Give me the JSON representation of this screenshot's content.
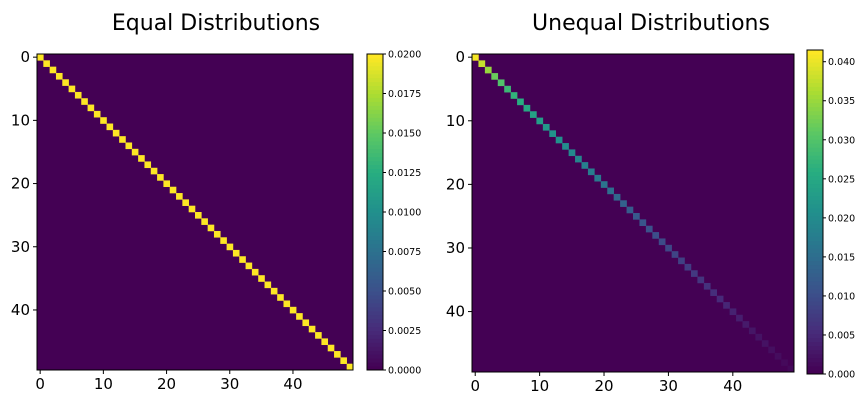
{
  "chart_data": [
    {
      "type": "heatmap",
      "title": "Equal Distributions",
      "xlabel": "",
      "ylabel": "",
      "size": 50,
      "x_ticks": [
        0,
        10,
        20,
        30,
        40
      ],
      "y_ticks": [
        0,
        10,
        20,
        30,
        40
      ],
      "diagonal_values": [
        0.02,
        0.02,
        0.02,
        0.02,
        0.02,
        0.02,
        0.02,
        0.02,
        0.02,
        0.02,
        0.02,
        0.02,
        0.02,
        0.02,
        0.02,
        0.02,
        0.02,
        0.02,
        0.02,
        0.02,
        0.02,
        0.02,
        0.02,
        0.02,
        0.02,
        0.02,
        0.02,
        0.02,
        0.02,
        0.02,
        0.02,
        0.02,
        0.02,
        0.02,
        0.02,
        0.02,
        0.02,
        0.02,
        0.02,
        0.02,
        0.02,
        0.02,
        0.02,
        0.02,
        0.02,
        0.02,
        0.02,
        0.02,
        0.02,
        0.02
      ],
      "off_diagonal_value": 0,
      "colorbar": {
        "min": 0,
        "max": 0.02,
        "ticks": [
          0,
          0.0025,
          0.005,
          0.0075,
          0.01,
          0.0125,
          0.015,
          0.0175,
          0.02
        ],
        "tick_labels": [
          "0.0000",
          "0.0025",
          "0.0050",
          "0.0075",
          "0.0100",
          "0.0125",
          "0.0150",
          "0.0175",
          "0.0200"
        ]
      },
      "colormap": "viridis"
    },
    {
      "type": "heatmap",
      "title": "Unequal Distributions",
      "xlabel": "",
      "ylabel": "",
      "size": 50,
      "x_ticks": [
        0,
        10,
        20,
        30,
        40
      ],
      "y_ticks": [
        0,
        10,
        20,
        30,
        40
      ],
      "diagonal_values": [
        0.041,
        0.038,
        0.035,
        0.032,
        0.03,
        0.028,
        0.027,
        0.026,
        0.025,
        0.024,
        0.023,
        0.022,
        0.0215,
        0.021,
        0.02,
        0.0195,
        0.019,
        0.018,
        0.0175,
        0.017,
        0.016,
        0.015,
        0.014,
        0.013,
        0.012,
        0.0115,
        0.011,
        0.0105,
        0.01,
        0.0095,
        0.009,
        0.0085,
        0.008,
        0.0075,
        0.007,
        0.0065,
        0.006,
        0.0055,
        0.005,
        0.0045,
        0.004,
        0.0035,
        0.003,
        0.0025,
        0.0022,
        0.002,
        0.0017,
        0.0014,
        0.001,
        0.0008
      ],
      "off_diagonal_value": 0,
      "colorbar": {
        "min": 0,
        "max": 0.0415,
        "ticks": [
          0,
          0.005,
          0.01,
          0.015,
          0.02,
          0.025,
          0.03,
          0.035,
          0.04
        ],
        "tick_labels": [
          "0.000",
          "0.005",
          "0.010",
          "0.015",
          "0.020",
          "0.025",
          "0.030",
          "0.035",
          "0.040"
        ]
      },
      "colormap": "viridis"
    }
  ]
}
